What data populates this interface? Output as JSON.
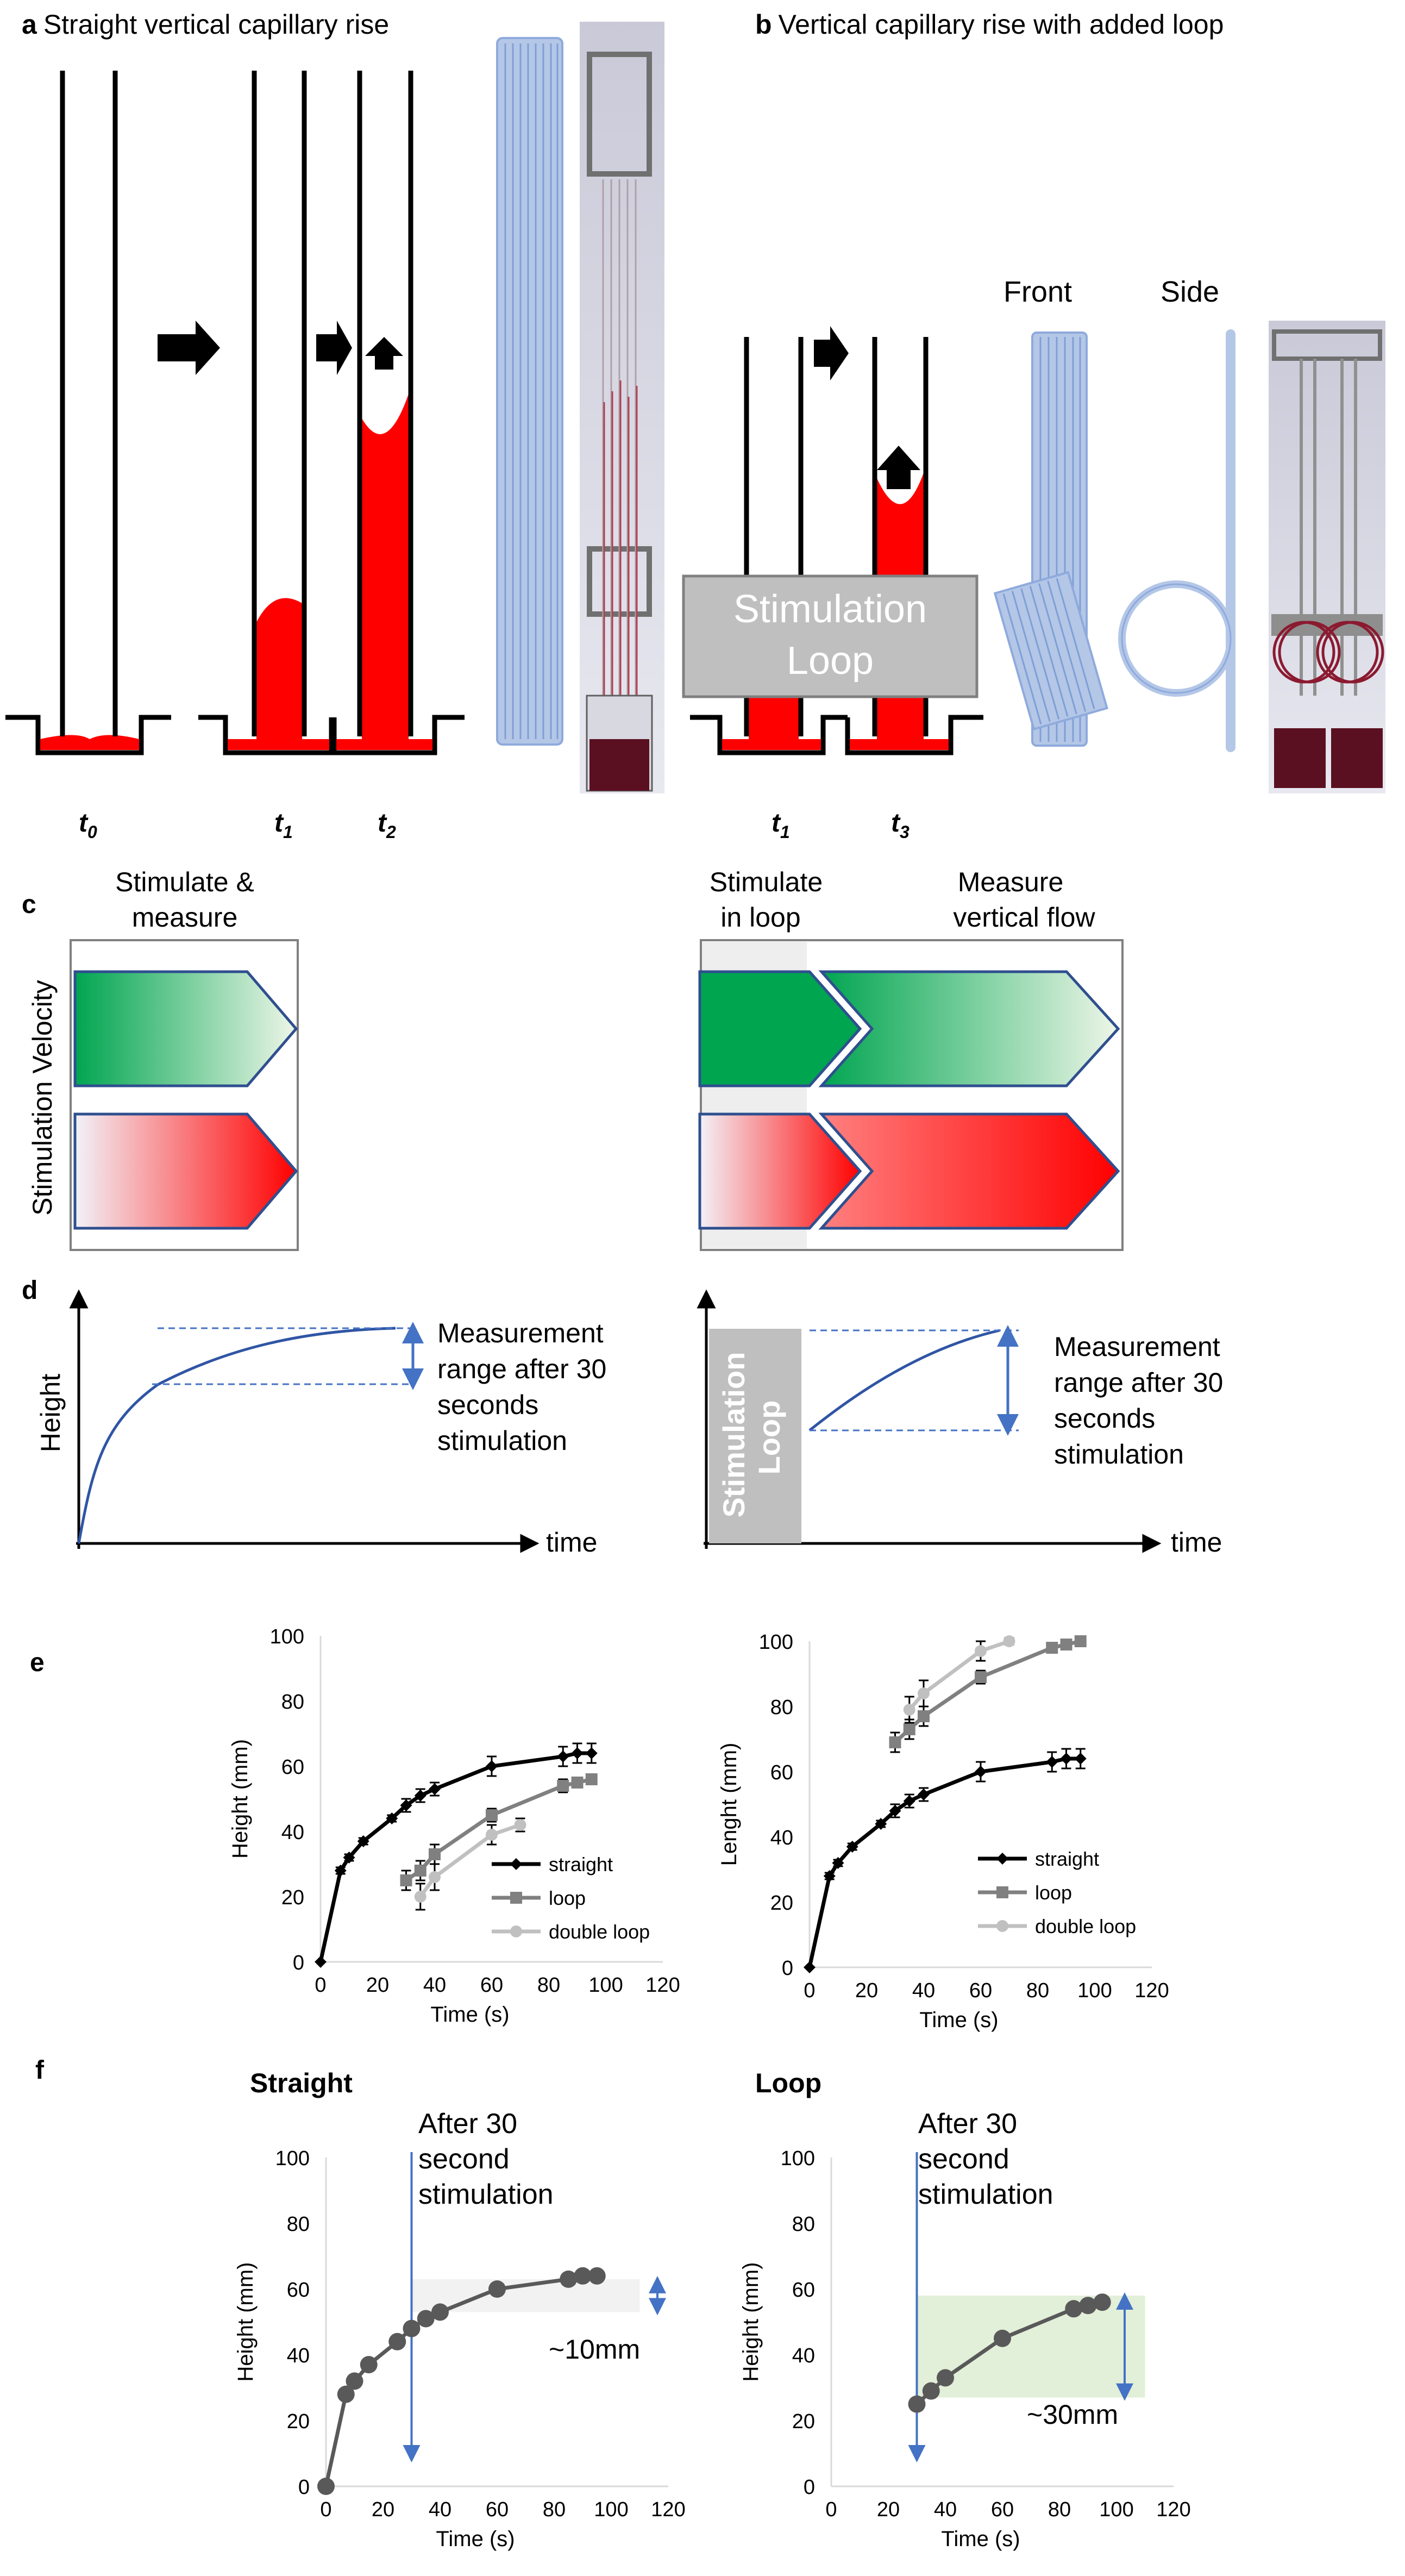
{
  "panel_a": {
    "letter": "a",
    "title": "Straight vertical capillary rise",
    "time_labels": [
      {
        "base": "t",
        "sub": "0"
      },
      {
        "base": "t",
        "sub": "1"
      },
      {
        "base": "t",
        "sub": "2"
      }
    ]
  },
  "panel_b": {
    "letter": "b",
    "title": "Vertical capillary rise with added loop",
    "front_label": "Front",
    "side_label": "Side",
    "stim_box": [
      "Stimulation",
      "Loop"
    ],
    "time_labels": [
      {
        "base": "t",
        "sub": "1"
      },
      {
        "base": "t",
        "sub": "3"
      }
    ]
  },
  "panel_c": {
    "letter": "c",
    "y_label": "Stimulation Velocity",
    "left_header": [
      "Stimulate &",
      "measure"
    ],
    "right_header_1": [
      "Stimulate",
      "in loop"
    ],
    "right_header_2": [
      "Measure",
      "vertical flow"
    ],
    "colors": {
      "green": "#00a550",
      "red": "#ff0000",
      "outline": "#2f4f8f"
    }
  },
  "panel_d": {
    "letter": "d",
    "y_label": "Height",
    "x_label_left": "time",
    "x_label_right": "time",
    "range_text_left": [
      "Measurement",
      "range after 30",
      "seconds",
      "stimulation"
    ],
    "range_text_right": [
      "Measurement",
      "range after 30",
      "seconds",
      "stimulation"
    ],
    "stim_box": [
      "Stimulation",
      "Loop"
    ]
  },
  "panel_e": {
    "letter": "e"
  },
  "panel_f": {
    "letter": "f",
    "left_title": "Straight",
    "right_title": "Loop",
    "annot_left": [
      "After 30",
      "second",
      "stimulation"
    ],
    "annot_right": [
      "After 30",
      "second",
      "stimulation"
    ],
    "range_left": "~10mm",
    "range_right": "~30mm"
  },
  "chart_data": [
    {
      "id": "e-left",
      "type": "line",
      "xlabel": "Time (s)",
      "ylabel": "Height (mm)",
      "xlim": [
        0,
        120
      ],
      "ylim": [
        0,
        100
      ],
      "xticks": [
        0,
        20,
        40,
        60,
        80,
        100,
        120
      ],
      "yticks": [
        0,
        20,
        40,
        60,
        80,
        100
      ],
      "legend": "bottom-right",
      "series": [
        {
          "name": "straight",
          "color": "#000000",
          "marker": "diamond",
          "x": [
            0,
            7,
            10,
            15,
            25,
            30,
            35,
            40,
            60,
            85,
            90,
            95
          ],
          "y": [
            0,
            28,
            32,
            37,
            44,
            48,
            51,
            53,
            60,
            63,
            64,
            64
          ],
          "err": [
            0,
            1,
            1,
            1,
            1,
            2,
            2,
            2,
            3,
            3,
            3,
            3
          ]
        },
        {
          "name": "loop",
          "color": "#808080",
          "marker": "square",
          "x": [
            30,
            35,
            40,
            60,
            85,
            90,
            95
          ],
          "y": [
            25,
            28,
            33,
            45,
            54,
            55,
            56
          ],
          "err": [
            3,
            3,
            3,
            2,
            2,
            1,
            1
          ]
        },
        {
          "name": "double loop",
          "color": "#c0c0c0",
          "marker": "circle",
          "x": [
            35,
            40,
            60,
            70
          ],
          "y": [
            20,
            26,
            39,
            42
          ],
          "err": [
            4,
            4,
            3,
            2
          ]
        }
      ]
    },
    {
      "id": "e-right",
      "type": "line",
      "xlabel": "Time (s)",
      "ylabel": "Lenght (mm)",
      "xlim": [
        0,
        120
      ],
      "ylim": [
        0,
        100
      ],
      "xticks": [
        0,
        20,
        40,
        60,
        80,
        100,
        120
      ],
      "yticks": [
        0,
        20,
        40,
        60,
        80,
        100
      ],
      "legend": "bottom-right",
      "series": [
        {
          "name": "straight",
          "color": "#000000",
          "marker": "diamond",
          "x": [
            0,
            7,
            10,
            15,
            25,
            30,
            35,
            40,
            60,
            85,
            90,
            95
          ],
          "y": [
            0,
            28,
            32,
            37,
            44,
            48,
            51,
            53,
            60,
            63,
            64,
            64
          ],
          "err": [
            0,
            1,
            1,
            1,
            1,
            2,
            2,
            2,
            3,
            3,
            3,
            3
          ]
        },
        {
          "name": "loop",
          "color": "#808080",
          "marker": "square",
          "x": [
            30,
            35,
            40,
            60,
            85,
            90,
            95
          ],
          "y": [
            69,
            73,
            77,
            89,
            98,
            99,
            100
          ],
          "err": [
            3,
            3,
            3,
            2,
            1,
            1,
            1
          ]
        },
        {
          "name": "double loop",
          "color": "#c0c0c0",
          "marker": "circle",
          "x": [
            35,
            40,
            60,
            70
          ],
          "y": [
            79,
            84,
            97,
            100
          ],
          "err": [
            4,
            4,
            3,
            1
          ]
        }
      ]
    },
    {
      "id": "f-left",
      "type": "line",
      "xlabel": "Time (s)",
      "ylabel": "Height (mm)",
      "xlim": [
        0,
        120
      ],
      "ylim": [
        0,
        100
      ],
      "xticks": [
        0,
        20,
        40,
        60,
        80,
        100,
        120
      ],
      "yticks": [
        0,
        20,
        40,
        60,
        80,
        100
      ],
      "marker_line_x": 30,
      "band": {
        "x": [
          30,
          110
        ],
        "y": [
          53,
          63
        ],
        "color": "#f2f2f2"
      },
      "series": [
        {
          "name": "straight",
          "color": "#595959",
          "marker": "circle",
          "x": [
            0,
            7,
            10,
            15,
            25,
            30,
            35,
            40,
            60,
            85,
            90,
            95
          ],
          "y": [
            0,
            28,
            32,
            37,
            44,
            48,
            51,
            53,
            60,
            63,
            64,
            64
          ]
        }
      ]
    },
    {
      "id": "f-right",
      "type": "line",
      "xlabel": "Time (s)",
      "ylabel": "Height (mm)",
      "xlim": [
        0,
        120
      ],
      "ylim": [
        0,
        100
      ],
      "xticks": [
        0,
        20,
        40,
        60,
        80,
        100,
        120
      ],
      "yticks": [
        0,
        20,
        40,
        60,
        80,
        100
      ],
      "marker_line_x": 30,
      "band": {
        "x": [
          30,
          110
        ],
        "y": [
          27,
          58
        ],
        "color": "#e2efd9"
      },
      "series": [
        {
          "name": "loop",
          "color": "#595959",
          "marker": "circle",
          "x": [
            30,
            35,
            40,
            60,
            85,
            90,
            95
          ],
          "y": [
            25,
            29,
            33,
            45,
            54,
            55,
            56
          ]
        }
      ]
    }
  ]
}
